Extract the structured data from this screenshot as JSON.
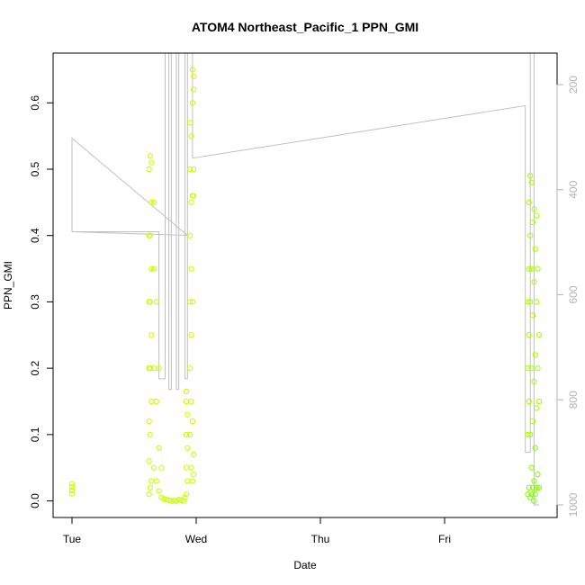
{
  "chart_data": {
    "type": "scatter",
    "title": "ATOM4 Northeast_Pacific_1 PPN_GMI",
    "xlabel": "Date",
    "ylabel": "PPN_GMI",
    "x_ticks": [
      "Tue",
      "Wed",
      "Thu",
      "Fri"
    ],
    "y_ticks": [
      0.0,
      0.1,
      0.2,
      0.3,
      0.4,
      0.5,
      0.6
    ],
    "y_tick_labels": [
      "0.0",
      "0.1",
      "0.2",
      "0.3",
      "0.4",
      "0.5",
      "0.6"
    ],
    "ylim": [
      -0.025,
      0.675
    ],
    "xlim_days": [
      -0.1,
      3.9
    ],
    "y2_ticks": [
      200,
      400,
      600,
      800,
      1000
    ],
    "y2_tick_labels": [
      "200",
      "400",
      "600",
      "800",
      "1000"
    ],
    "y2lim": [
      1024,
      140
    ],
    "y2_reversed": true,
    "colors": {
      "points_a": "#c8ff00",
      "points_b": "#a6ff00",
      "points_c": "#7fff00",
      "depth_line": "#c0c0c0",
      "right_axis": "#b3b3b3"
    },
    "points": [
      {
        "x": 0.0,
        "y": 0.011
      },
      {
        "x": 0.0,
        "y": 0.016
      },
      {
        "x": 0.0,
        "y": 0.021
      },
      {
        "x": 0.0,
        "y": 0.026
      },
      {
        "x": 0.62,
        "y": 0.01
      },
      {
        "x": 0.62,
        "y": 0.06
      },
      {
        "x": 0.62,
        "y": 0.12
      },
      {
        "x": 0.62,
        "y": 0.2
      },
      {
        "x": 0.62,
        "y": 0.3
      },
      {
        "x": 0.62,
        "y": 0.4
      },
      {
        "x": 0.62,
        "y": 0.5
      },
      {
        "x": 0.63,
        "y": 0.02
      },
      {
        "x": 0.63,
        "y": 0.1
      },
      {
        "x": 0.63,
        "y": 0.2
      },
      {
        "x": 0.63,
        "y": 0.3
      },
      {
        "x": 0.63,
        "y": 0.4
      },
      {
        "x": 0.63,
        "y": 0.52
      },
      {
        "x": 0.64,
        "y": 0.03
      },
      {
        "x": 0.64,
        "y": 0.15
      },
      {
        "x": 0.64,
        "y": 0.25
      },
      {
        "x": 0.64,
        "y": 0.35
      },
      {
        "x": 0.64,
        "y": 0.45
      },
      {
        "x": 0.64,
        "y": 0.51
      },
      {
        "x": 0.66,
        "y": 0.05
      },
      {
        "x": 0.66,
        "y": 0.2
      },
      {
        "x": 0.66,
        "y": 0.35
      },
      {
        "x": 0.66,
        "y": 0.45
      },
      {
        "x": 0.68,
        "y": 0.03
      },
      {
        "x": 0.68,
        "y": 0.15
      },
      {
        "x": 0.68,
        "y": 0.3
      },
      {
        "x": 0.7,
        "y": 0.015
      },
      {
        "x": 0.7,
        "y": 0.08
      },
      {
        "x": 0.7,
        "y": 0.2
      },
      {
        "x": 0.72,
        "y": 0.005
      },
      {
        "x": 0.72,
        "y": 0.05
      },
      {
        "x": 0.74,
        "y": 0.003
      },
      {
        "x": 0.76,
        "y": 0.002
      },
      {
        "x": 0.78,
        "y": 0.001
      },
      {
        "x": 0.8,
        "y": 0.0
      },
      {
        "x": 0.82,
        "y": 0.001
      },
      {
        "x": 0.84,
        "y": 0.0
      },
      {
        "x": 0.86,
        "y": 0.002
      },
      {
        "x": 0.88,
        "y": 0.001
      },
      {
        "x": 0.9,
        "y": 0.0
      },
      {
        "x": 0.91,
        "y": 0.005
      },
      {
        "x": 0.92,
        "y": 0.01
      },
      {
        "x": 0.92,
        "y": 0.05
      },
      {
        "x": 0.92,
        "y": 0.1
      },
      {
        "x": 0.92,
        "y": 0.15
      },
      {
        "x": 0.92,
        "y": 0.165
      },
      {
        "x": 0.93,
        "y": 0.03
      },
      {
        "x": 0.93,
        "y": 0.08
      },
      {
        "x": 0.93,
        "y": 0.13
      },
      {
        "x": 0.95,
        "y": 0.1
      },
      {
        "x": 0.95,
        "y": 0.2
      },
      {
        "x": 0.95,
        "y": 0.3
      },
      {
        "x": 0.95,
        "y": 0.4
      },
      {
        "x": 0.95,
        "y": 0.5
      },
      {
        "x": 0.95,
        "y": 0.57
      },
      {
        "x": 0.96,
        "y": 0.05
      },
      {
        "x": 0.96,
        "y": 0.15
      },
      {
        "x": 0.96,
        "y": 0.25
      },
      {
        "x": 0.96,
        "y": 0.35
      },
      {
        "x": 0.96,
        "y": 0.45
      },
      {
        "x": 0.96,
        "y": 0.55
      },
      {
        "x": 0.97,
        "y": 0.03
      },
      {
        "x": 0.97,
        "y": 0.12
      },
      {
        "x": 0.97,
        "y": 0.3
      },
      {
        "x": 0.97,
        "y": 0.46
      },
      {
        "x": 0.97,
        "y": 0.6
      },
      {
        "x": 0.97,
        "y": 0.65
      },
      {
        "x": 0.98,
        "y": 0.04
      },
      {
        "x": 0.98,
        "y": 0.07
      },
      {
        "x": 0.98,
        "y": 0.46
      },
      {
        "x": 0.98,
        "y": 0.5
      },
      {
        "x": 0.98,
        "y": 0.62
      },
      {
        "x": 0.98,
        "y": 0.64
      },
      {
        "x": 3.67,
        "y": 0.01
      },
      {
        "x": 3.67,
        "y": 0.1
      },
      {
        "x": 3.67,
        "y": 0.2
      },
      {
        "x": 3.67,
        "y": 0.3
      },
      {
        "x": 3.68,
        "y": 0.02
      },
      {
        "x": 3.68,
        "y": 0.15
      },
      {
        "x": 3.68,
        "y": 0.25
      },
      {
        "x": 3.68,
        "y": 0.35
      },
      {
        "x": 3.68,
        "y": 0.45
      },
      {
        "x": 3.69,
        "y": 0.005
      },
      {
        "x": 3.69,
        "y": 0.1
      },
      {
        "x": 3.69,
        "y": 0.3
      },
      {
        "x": 3.69,
        "y": 0.4
      },
      {
        "x": 3.69,
        "y": 0.49
      },
      {
        "x": 3.7,
        "y": 0.01
      },
      {
        "x": 3.7,
        "y": 0.05
      },
      {
        "x": 3.7,
        "y": 0.2
      },
      {
        "x": 3.7,
        "y": 0.35
      },
      {
        "x": 3.7,
        "y": 0.48
      },
      {
        "x": 3.71,
        "y": 0.02
      },
      {
        "x": 3.71,
        "y": 0.12
      },
      {
        "x": 3.71,
        "y": 0.28
      },
      {
        "x": 3.71,
        "y": 0.42
      },
      {
        "x": 3.72,
        "y": 0.0
      },
      {
        "x": 3.72,
        "y": 0.03
      },
      {
        "x": 3.72,
        "y": 0.18
      },
      {
        "x": 3.72,
        "y": 0.33
      },
      {
        "x": 3.72,
        "y": 0.44
      },
      {
        "x": 3.73,
        "y": 0.01
      },
      {
        "x": 3.73,
        "y": 0.08
      },
      {
        "x": 3.73,
        "y": 0.22
      },
      {
        "x": 3.73,
        "y": 0.38
      },
      {
        "x": 3.74,
        "y": 0.02
      },
      {
        "x": 3.74,
        "y": 0.14
      },
      {
        "x": 3.74,
        "y": 0.3
      },
      {
        "x": 3.74,
        "y": 0.43
      },
      {
        "x": 3.75,
        "y": 0.04
      },
      {
        "x": 3.75,
        "y": 0.2
      },
      {
        "x": 3.75,
        "y": 0.35
      },
      {
        "x": 3.76,
        "y": 0.02
      },
      {
        "x": 3.76,
        "y": 0.15
      },
      {
        "x": 3.76,
        "y": 0.25
      }
    ],
    "depth_line": [
      {
        "x": 0.0,
        "d": 480
      },
      {
        "x": 0.0,
        "d": 302
      },
      {
        "x": 0.93,
        "d": 487
      },
      {
        "x": 0.0,
        "d": 480
      },
      {
        "x": 0.7,
        "d": 480
      },
      {
        "x": 0.7,
        "d": 760
      },
      {
        "x": 0.75,
        "d": 760
      },
      {
        "x": 0.75,
        "d": 140
      },
      {
        "x": 0.78,
        "d": 140
      },
      {
        "x": 0.78,
        "d": 780
      },
      {
        "x": 0.8,
        "d": 780
      },
      {
        "x": 0.8,
        "d": 140
      },
      {
        "x": 0.84,
        "d": 140
      },
      {
        "x": 0.84,
        "d": 780
      },
      {
        "x": 0.86,
        "d": 780
      },
      {
        "x": 0.86,
        "d": 140
      },
      {
        "x": 0.91,
        "d": 140
      },
      {
        "x": 0.91,
        "d": 760
      },
      {
        "x": 0.93,
        "d": 760
      },
      {
        "x": 0.93,
        "d": 140
      },
      {
        "x": 0.97,
        "d": 140
      },
      {
        "x": 0.97,
        "d": 340
      },
      {
        "x": 3.65,
        "d": 240
      },
      {
        "x": 3.65,
        "d": 900
      },
      {
        "x": 3.69,
        "d": 900
      },
      {
        "x": 3.69,
        "d": 140
      },
      {
        "x": 3.72,
        "d": 140
      },
      {
        "x": 3.72,
        "d": 1000
      },
      {
        "x": 3.76,
        "d": 1000
      }
    ]
  }
}
